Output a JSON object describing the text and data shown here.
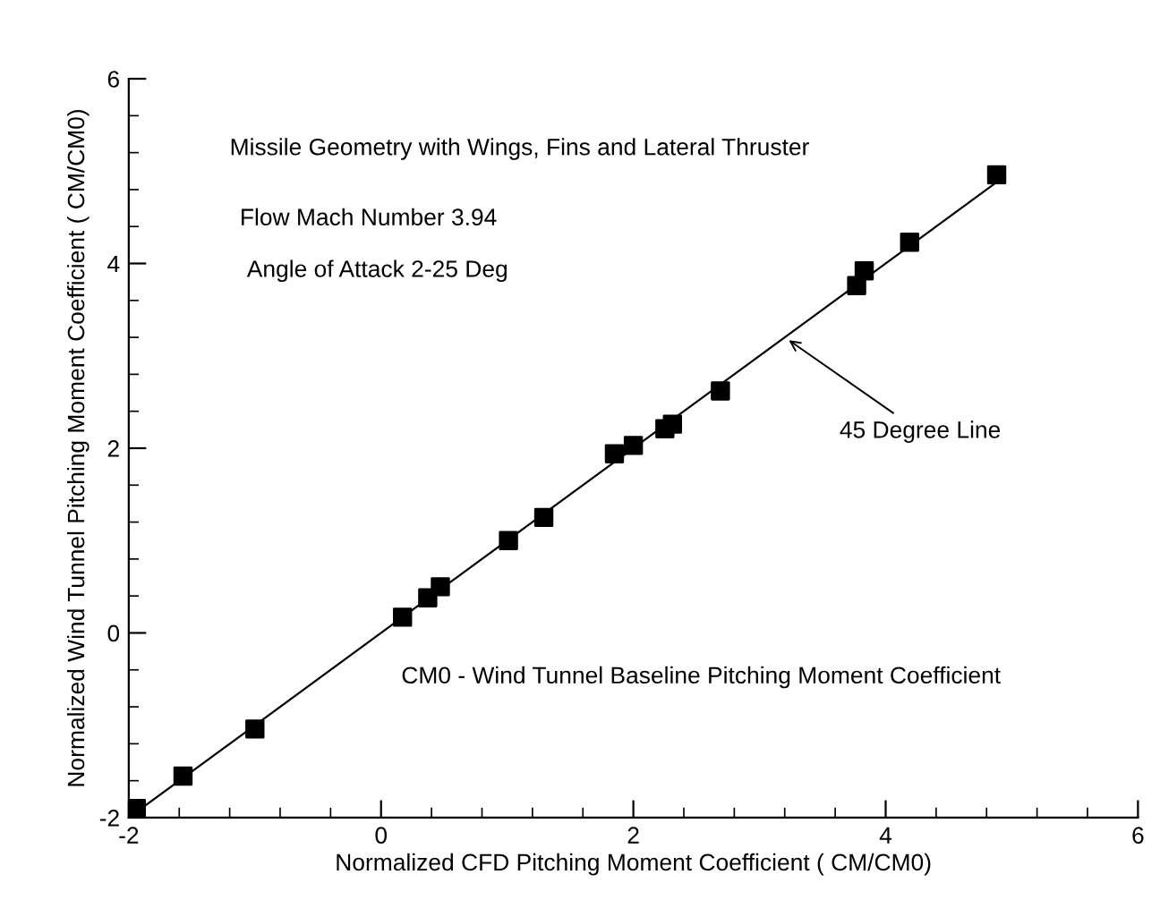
{
  "chart_data": {
    "type": "scatter",
    "xlabel": "Normalized CFD Pitching Moment Coefficient ( CM/CM0)",
    "ylabel": "Normalized Wind Tunnel Pitching Moment Coefficient ( CM/CM0)",
    "xlim": [
      -2,
      6
    ],
    "ylim": [
      -2,
      6
    ],
    "xticks": [
      -2,
      0,
      2,
      4,
      6
    ],
    "yticks": [
      -2,
      0,
      2,
      4,
      6
    ],
    "marker": "square",
    "grid": false,
    "legend": false,
    "series": [
      {
        "color": "#000000",
        "x": [
          -1.94,
          -1.57,
          -1.0,
          0.17,
          0.37,
          0.47,
          1.01,
          1.29,
          1.85,
          2.0,
          2.25,
          2.31,
          2.69,
          3.77,
          3.83,
          4.19,
          4.88
        ],
        "values": [
          -1.9,
          -1.55,
          -1.04,
          0.17,
          0.38,
          0.5,
          1.0,
          1.25,
          1.94,
          2.03,
          2.21,
          2.26,
          2.62,
          3.76,
          3.92,
          4.23,
          4.96
        ]
      },
      {
        "type": "line",
        "color": "#000000",
        "line_style": "solid",
        "marker": "none",
        "x": [
          -2,
          4.9
        ],
        "values": [
          -2,
          4.9
        ]
      }
    ],
    "annotations": [
      "Missile Geometry with Wings, Fins and Lateral Thruster",
      "Flow Mach Number 3.94",
      "Angle of Attack 2-25 Deg",
      {
        "text": "45 Degree Line",
        "x": 3.2,
        "y": 3.2
      },
      "CM0 - Wind Tunnel Baseline Pitching Moment Coefficient"
    ]
  }
}
